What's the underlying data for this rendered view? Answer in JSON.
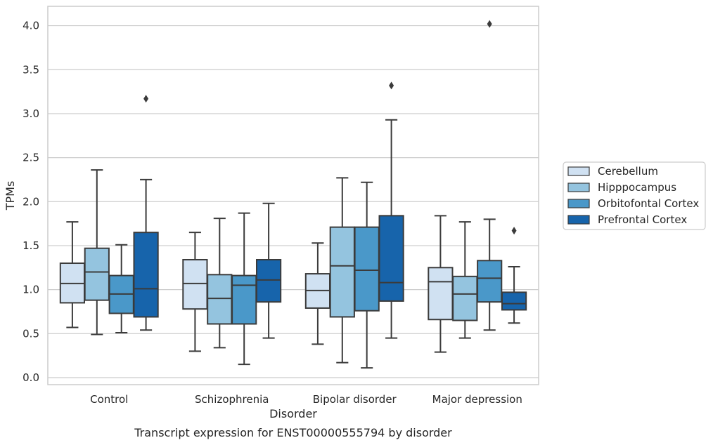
{
  "chart_data": {
    "type": "boxplot",
    "xlabel": "Disorder",
    "ylabel": "TPMs",
    "caption": "Transcript expression for ENST00000555794 by disorder",
    "categories": [
      "Control",
      "Schizophrenia",
      "Bipolar disorder",
      "Major depression"
    ],
    "ylim": [
      -0.08,
      4.22
    ],
    "yticks": [
      0.0,
      0.5,
      1.0,
      1.5,
      2.0,
      2.5,
      3.0,
      3.5,
      4.0
    ],
    "ytick_labels": [
      "0.0",
      "0.5",
      "1.0",
      "1.5",
      "2.0",
      "2.5",
      "3.0",
      "3.5",
      "4.0"
    ],
    "grid": "horizontal",
    "legend_position": "right",
    "series": [
      {
        "name": "Cerebellum",
        "color": "#d0e1f2",
        "boxes": [
          {
            "whislo": 0.57,
            "q1": 0.85,
            "med": 1.07,
            "q3": 1.3,
            "whishi": 1.77,
            "fliers": []
          },
          {
            "whislo": 0.3,
            "q1": 0.78,
            "med": 1.07,
            "q3": 1.34,
            "whishi": 1.65,
            "fliers": []
          },
          {
            "whislo": 0.38,
            "q1": 0.79,
            "med": 0.99,
            "q3": 1.18,
            "whishi": 1.53,
            "fliers": []
          },
          {
            "whislo": 0.29,
            "q1": 0.66,
            "med": 1.09,
            "q3": 1.25,
            "whishi": 1.84,
            "fliers": []
          }
        ]
      },
      {
        "name": "Hipppocampus",
        "color": "#94c4df",
        "boxes": [
          {
            "whislo": 0.49,
            "q1": 0.88,
            "med": 1.2,
            "q3": 1.47,
            "whishi": 2.36,
            "fliers": []
          },
          {
            "whislo": 0.34,
            "q1": 0.61,
            "med": 0.9,
            "q3": 1.17,
            "whishi": 1.81,
            "fliers": []
          },
          {
            "whislo": 0.17,
            "q1": 0.69,
            "med": 1.27,
            "q3": 1.71,
            "whishi": 2.27,
            "fliers": []
          },
          {
            "whislo": 0.45,
            "q1": 0.65,
            "med": 0.95,
            "q3": 1.15,
            "whishi": 1.77,
            "fliers": []
          }
        ]
      },
      {
        "name": "Orbitofontal Cortex",
        "color": "#4a98c9",
        "boxes": [
          {
            "whislo": 0.51,
            "q1": 0.73,
            "med": 0.95,
            "q3": 1.16,
            "whishi": 1.51,
            "fliers": []
          },
          {
            "whislo": 0.15,
            "q1": 0.61,
            "med": 1.05,
            "q3": 1.16,
            "whishi": 1.87,
            "fliers": []
          },
          {
            "whislo": 0.11,
            "q1": 0.76,
            "med": 1.22,
            "q3": 1.71,
            "whishi": 2.22,
            "fliers": []
          },
          {
            "whislo": 0.54,
            "q1": 0.86,
            "med": 1.13,
            "q3": 1.33,
            "whishi": 1.8,
            "fliers": [
              4.02
            ]
          }
        ]
      },
      {
        "name": "Prefrontal Cortex",
        "color": "#1764ab",
        "boxes": [
          {
            "whislo": 0.54,
            "q1": 0.69,
            "med": 1.01,
            "q3": 1.65,
            "whishi": 2.25,
            "fliers": [
              3.17
            ]
          },
          {
            "whislo": 0.45,
            "q1": 0.86,
            "med": 1.11,
            "q3": 1.34,
            "whishi": 1.98,
            "fliers": []
          },
          {
            "whislo": 0.45,
            "q1": 0.87,
            "med": 1.08,
            "q3": 1.84,
            "whishi": 2.93,
            "fliers": [
              3.32
            ]
          },
          {
            "whislo": 0.62,
            "q1": 0.77,
            "med": 0.84,
            "q3": 0.97,
            "whishi": 1.26,
            "fliers": [
              1.67
            ]
          }
        ]
      }
    ]
  }
}
